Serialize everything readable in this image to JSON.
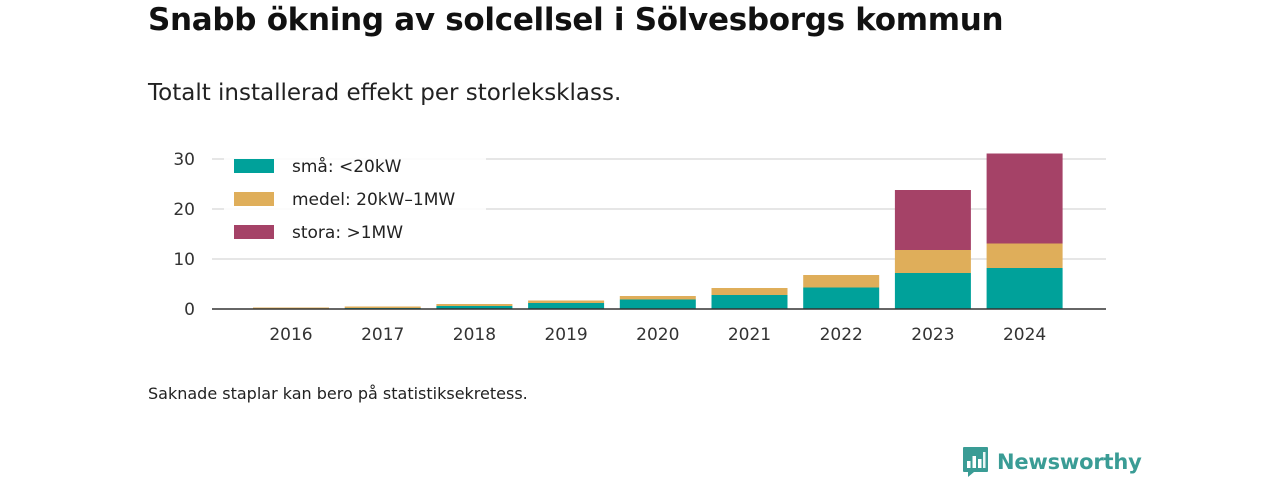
{
  "header": {
    "title": "Snabb ökning av solcellsel i Sölvesborgs kommun",
    "subtitle": "Totalt installerad effekt per storleksklass."
  },
  "footer": {
    "note": "Saknade staplar kan bero på statistiksekretess.",
    "brand": "Newsworthy"
  },
  "colors": {
    "small": "#00a19a",
    "medium": "#dfae5a",
    "large": "#a54267",
    "grid": "#dddddd",
    "axis": "#333333",
    "brand": "#3a9c95"
  },
  "chart_data": {
    "type": "bar",
    "stacked": true,
    "categories": [
      "2016",
      "2017",
      "2018",
      "2019",
      "2020",
      "2021",
      "2022",
      "2023",
      "2024"
    ],
    "series": [
      {
        "name": "små: <20kW",
        "color": "#00a19a",
        "values": [
          0.1,
          0.2,
          0.6,
          1.2,
          1.9,
          2.8,
          4.3,
          7.2,
          8.2
        ]
      },
      {
        "name": "medel: 20kW–1MW",
        "color": "#dfae5a",
        "values": [
          0.2,
          0.3,
          0.4,
          0.5,
          0.7,
          1.4,
          2.5,
          4.6,
          4.9
        ]
      },
      {
        "name": "stora: >1MW",
        "color": "#a54267",
        "values": [
          0,
          0,
          0,
          0,
          0,
          0,
          0,
          12.0,
          18.0
        ]
      }
    ],
    "ylim": [
      0,
      31
    ],
    "yticks": [
      0,
      10,
      20,
      30
    ],
    "grid": true,
    "legend_position": "top-left",
    "xlabel": "",
    "ylabel": ""
  }
}
